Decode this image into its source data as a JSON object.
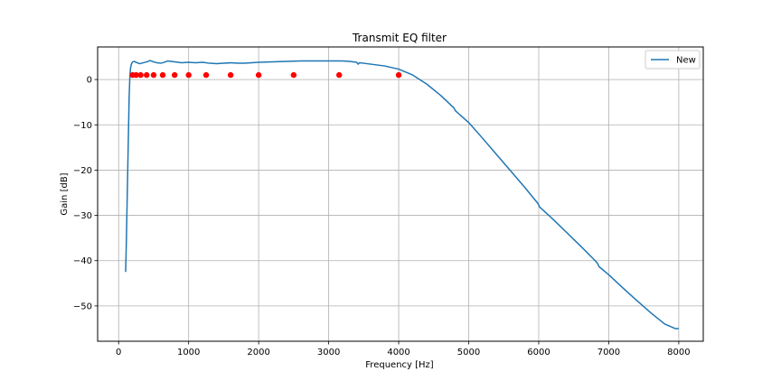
{
  "chart_data": {
    "type": "line",
    "title": "Transmit EQ filter",
    "xlabel": "Frequency [Hz]",
    "ylabel": "Gain [dB]",
    "xlim": [
      -300,
      8350
    ],
    "ylim": [
      -57.8,
      7.2
    ],
    "xticks": [
      0,
      1000,
      2000,
      3000,
      4000,
      5000,
      6000,
      7000,
      8000
    ],
    "yticks": [
      0,
      -10,
      -20,
      -30,
      -40,
      -50
    ],
    "grid": true,
    "legend_position": "top-right",
    "colors": {
      "line": "#1f77b4",
      "markers": "#ff0000",
      "grid": "#b0b0b0"
    },
    "series": [
      {
        "name": "New",
        "kind": "line",
        "x": [
          100,
          110,
          120,
          130,
          140,
          150,
          160,
          170,
          180,
          190,
          200,
          225,
          250,
          300,
          350,
          400,
          450,
          500,
          550,
          600,
          650,
          700,
          750,
          800,
          900,
          1000,
          1100,
          1200,
          1300,
          1400,
          1500,
          1600,
          1700,
          1800,
          1900,
          2000,
          2200,
          2400,
          2600,
          2800,
          3000,
          3200,
          3300,
          3400,
          3420,
          3440,
          3500,
          3600,
          3800,
          4000,
          4200,
          4400,
          4600,
          4790,
          4810,
          5000,
          5200,
          5400,
          5600,
          5800,
          5990,
          6010,
          6200,
          6400,
          6600,
          6800,
          6840,
          6860,
          7000,
          7200,
          7400,
          7600,
          7800,
          7950,
          8000
        ],
        "y": [
          -42.5,
          -36,
          -28,
          -20,
          -12,
          -4,
          0.5,
          2.5,
          3.3,
          3.7,
          3.9,
          4.0,
          3.8,
          3.5,
          3.7,
          3.9,
          4.2,
          3.9,
          3.7,
          3.6,
          3.8,
          4.1,
          4.0,
          3.9,
          3.7,
          3.8,
          3.7,
          3.8,
          3.6,
          3.5,
          3.6,
          3.7,
          3.6,
          3.6,
          3.7,
          3.8,
          3.9,
          4.0,
          4.1,
          4.1,
          4.1,
          4.1,
          4.0,
          3.8,
          3.4,
          3.7,
          3.6,
          3.4,
          3.0,
          2.3,
          1.0,
          -1.0,
          -3.5,
          -6.3,
          -6.9,
          -9.5,
          -13.0,
          -16.6,
          -20.2,
          -23.8,
          -27.4,
          -28.1,
          -30.8,
          -33.8,
          -36.8,
          -39.9,
          -40.6,
          -41.3,
          -43.1,
          -46.0,
          -48.8,
          -51.5,
          -54.0,
          -55.0,
          -55.0
        ]
      },
      {
        "kind": "scatter",
        "x": [
          200,
          250,
          315,
          400,
          500,
          630,
          800,
          1000,
          1250,
          1600,
          2000,
          2500,
          3150,
          4000
        ],
        "y": [
          1,
          1,
          1,
          1,
          1,
          1,
          1,
          1,
          1,
          1,
          1,
          1,
          1,
          1
        ]
      }
    ]
  }
}
